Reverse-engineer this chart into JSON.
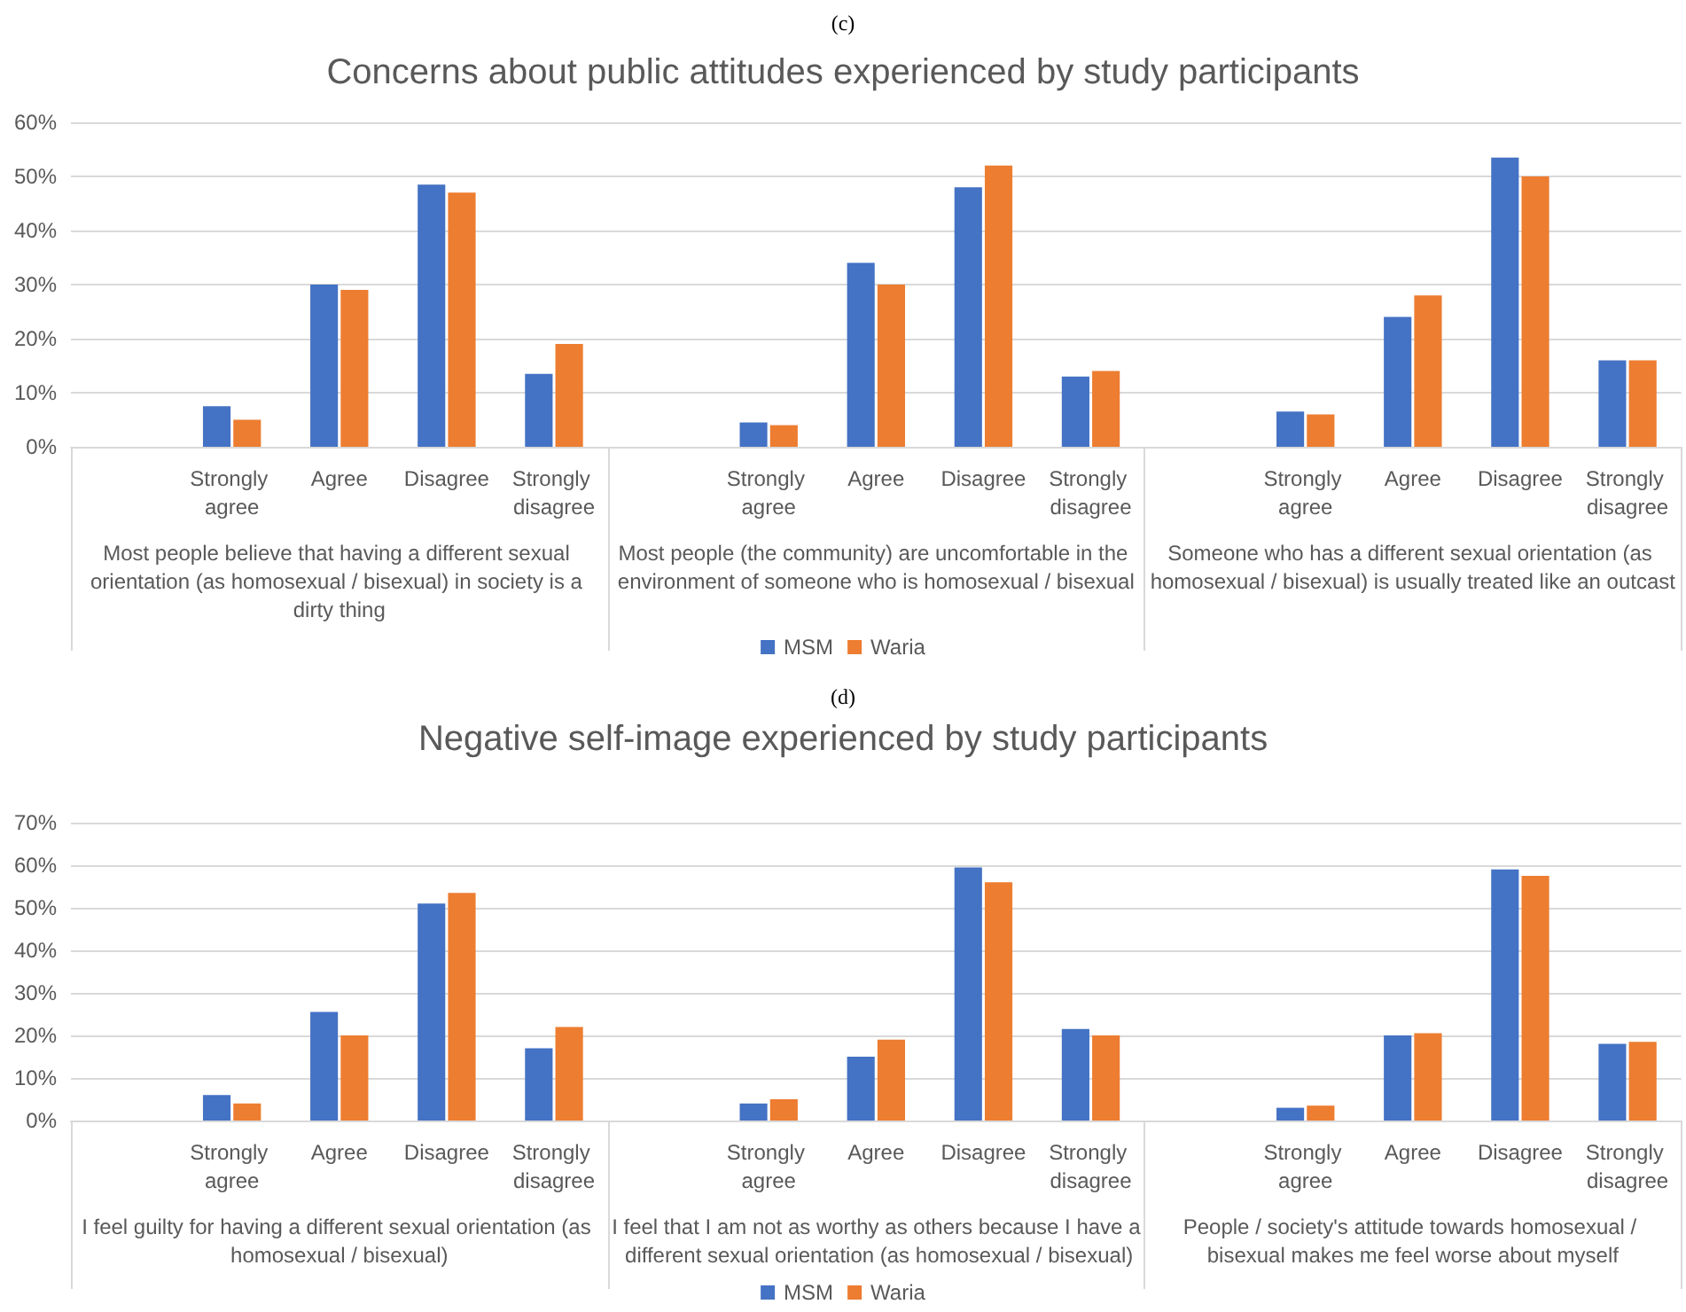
{
  "chart_data": [
    {
      "type": "bar",
      "subtitle": "(c)",
      "title": "Concerns about public attitudes experienced by study participants",
      "categories": [
        null,
        "Strongly agree",
        "Agree",
        "Disagree",
        "Strongly disagree",
        null,
        "Strongly agree",
        "Agree",
        "Disagree",
        "Strongly disagree",
        null,
        "Strongly agree",
        "Agree",
        "Disagree",
        "Strongly disagree"
      ],
      "series": [
        {
          "name": "MSM",
          "color": "#4472c4",
          "values": [
            null,
            7.5,
            30,
            48.5,
            13.5,
            null,
            4.5,
            34,
            48,
            13,
            null,
            6.5,
            24,
            53.5,
            16
          ]
        },
        {
          "name": "Waria",
          "color": "#ed7d31",
          "values": [
            null,
            5,
            29,
            47,
            19,
            null,
            4,
            30,
            52,
            14,
            null,
            6,
            28,
            50,
            16
          ]
        }
      ],
      "annotations": [
        "Most people believe that having a different sexual orientation (as homosexual / bisexual) in society is a dirty thing",
        "Most people (the community) are uncomfortable in the environment of someone who is homosexual / bisexual",
        "Someone who has a different sexual orientation (as homosexual / bisexual) is usually treated like an outcast"
      ],
      "ylim": [
        0,
        60
      ],
      "yticks": [
        {
          "value": 0,
          "label": "0%"
        },
        {
          "value": 10,
          "label": "10%"
        },
        {
          "value": 20,
          "label": "20%"
        },
        {
          "value": 30,
          "label": "30%"
        },
        {
          "value": 40,
          "label": "40%"
        },
        {
          "value": 50,
          "label": "50%"
        },
        {
          "value": 60,
          "label": "60%"
        }
      ],
      "grid": "y",
      "legend": "bottom"
    },
    {
      "type": "bar",
      "subtitle": "(d)",
      "title": "Negative self-image experienced by study participants",
      "categories": [
        null,
        "Strongly agree",
        "Agree",
        "Disagree",
        "Strongly disagree",
        null,
        "Strongly agree",
        "Agree",
        "Disagree",
        "Strongly disagree",
        null,
        "Strongly agree",
        "Agree",
        "Disagree",
        "Strongly disagree"
      ],
      "series": [
        {
          "name": "MSM",
          "color": "#4472c4",
          "values": [
            null,
            6,
            25.5,
            51,
            17,
            null,
            4,
            15,
            59.5,
            21.5,
            null,
            3,
            20,
            59,
            18
          ]
        },
        {
          "name": "Waria",
          "color": "#ed7d31",
          "values": [
            null,
            4,
            20,
            53.5,
            22,
            null,
            5,
            19,
            56,
            20,
            null,
            3.5,
            20.5,
            57.5,
            18.5
          ]
        }
      ],
      "annotations": [
        "I feel guilty for having a different sexual orientation (as homosexual / bisexual)",
        "I feel that I am not as worthy as others because I have a different sexual orientation (as homosexual / bisexual)",
        "People / society's attitude towards homosexual / bisexual makes me feel worse about myself"
      ],
      "ylim": [
        0,
        70
      ],
      "yticks": [
        {
          "value": 0,
          "label": "0%"
        },
        {
          "value": 10,
          "label": "10%"
        },
        {
          "value": 20,
          "label": "20%"
        },
        {
          "value": 30,
          "label": "30%"
        },
        {
          "value": 40,
          "label": "40%"
        },
        {
          "value": 50,
          "label": "50%"
        },
        {
          "value": 60,
          "label": "60%"
        },
        {
          "value": 70,
          "label": "70%"
        }
      ],
      "grid": "y",
      "legend": "bottom"
    }
  ]
}
